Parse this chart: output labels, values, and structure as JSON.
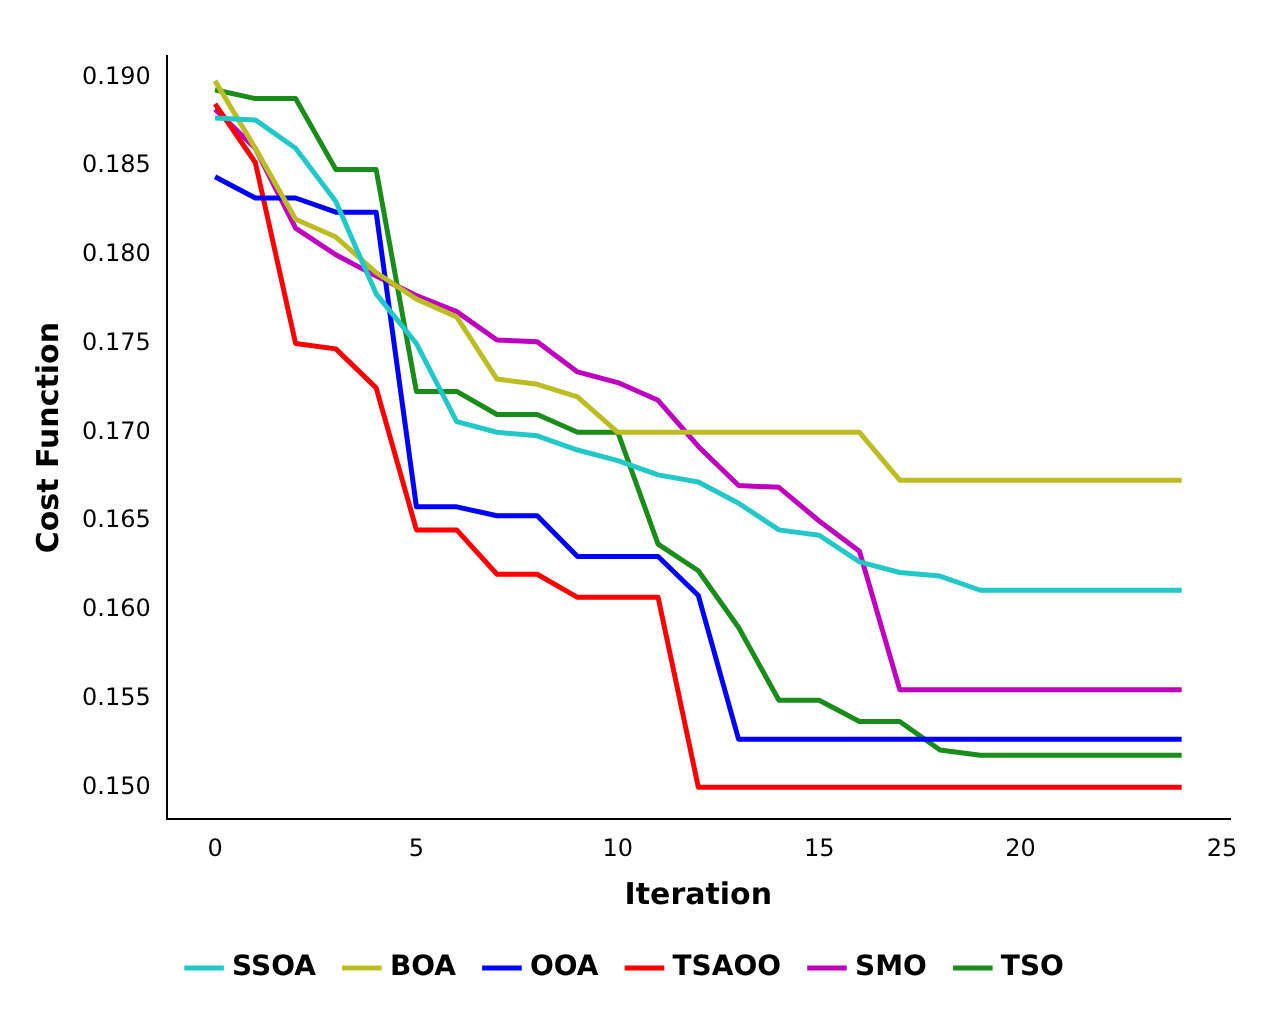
{
  "chart_data": {
    "type": "line",
    "xlabel": "Iteration",
    "ylabel": "Cost Function",
    "x": [
      0,
      1,
      2,
      3,
      4,
      5,
      6,
      7,
      8,
      9,
      10,
      11,
      12,
      13,
      14,
      15,
      16,
      17,
      18,
      19,
      20,
      21,
      22,
      23,
      24
    ],
    "series": [
      {
        "name": "SSOA",
        "color": "#22c7c7",
        "values": [
          0.1877,
          0.1876,
          0.186,
          0.183,
          0.1778,
          0.175,
          0.1706,
          0.17,
          0.1698,
          0.169,
          0.1684,
          0.1676,
          0.1672,
          0.166,
          0.1645,
          0.1642,
          0.1627,
          0.1621,
          0.1619,
          0.1611,
          0.1611,
          0.1611,
          0.1611,
          0.1611,
          0.1611
        ]
      },
      {
        "name": "BOA",
        "color": "#bcbd22",
        "values": [
          0.1898,
          0.186,
          0.182,
          0.181,
          0.179,
          0.1775,
          0.1765,
          0.173,
          0.1727,
          0.172,
          0.17,
          0.17,
          0.17,
          0.17,
          0.17,
          0.17,
          0.17,
          0.1673,
          0.1673,
          0.1673,
          0.1673,
          0.1673,
          0.1673,
          0.1673,
          0.1673
        ]
      },
      {
        "name": "OOA",
        "color": "#0000ff",
        "values": [
          0.1844,
          0.1832,
          0.1832,
          0.1824,
          0.1824,
          0.1658,
          0.1658,
          0.1653,
          0.1653,
          0.163,
          0.163,
          0.163,
          0.1608,
          0.1527,
          0.1527,
          0.1527,
          0.1527,
          0.1527,
          0.1527,
          0.1527,
          0.1527,
          0.1527,
          0.1527,
          0.1527,
          0.1527
        ]
      },
      {
        "name": "TSAOO",
        "color": "#ff0000",
        "values": [
          0.1885,
          0.1852,
          0.175,
          0.1747,
          0.1725,
          0.1645,
          0.1645,
          0.162,
          0.162,
          0.1607,
          0.1607,
          0.1607,
          0.15,
          0.15,
          0.15,
          0.15,
          0.15,
          0.15,
          0.15,
          0.15,
          0.15,
          0.15,
          0.15,
          0.15,
          0.15
        ]
      },
      {
        "name": "SMO",
        "color": "#bf00bf",
        "values": [
          0.1882,
          0.186,
          0.1815,
          0.18,
          0.1788,
          0.1777,
          0.1768,
          0.1752,
          0.1751,
          0.1734,
          0.1728,
          0.1718,
          0.1692,
          0.167,
          0.1669,
          0.165,
          0.1633,
          0.1555,
          0.1555,
          0.1555,
          0.1555,
          0.1555,
          0.1555,
          0.1555,
          0.1555
        ]
      },
      {
        "name": "TSO",
        "color": "#1a8c1a",
        "values": [
          0.1893,
          0.1888,
          0.1888,
          0.1848,
          0.1848,
          0.1723,
          0.1723,
          0.171,
          0.171,
          0.17,
          0.17,
          0.1637,
          0.1622,
          0.159,
          0.1549,
          0.1549,
          0.1537,
          0.1537,
          0.1521,
          0.1518,
          0.1518,
          0.1518,
          0.1518,
          0.1518,
          0.1518
        ]
      }
    ],
    "xlim": [
      -1.2,
      25.2
    ],
    "xticks": [
      0,
      5,
      10,
      15,
      20,
      25
    ],
    "ylim": [
      0.1482,
      0.1912
    ],
    "yticks": [
      {
        "value": 0.15,
        "label": "0.150"
      },
      {
        "value": 0.155,
        "label": "0.155"
      },
      {
        "value": 0.16,
        "label": "0.160"
      },
      {
        "value": 0.165,
        "label": "0.165"
      },
      {
        "value": 0.17,
        "label": "0.170"
      },
      {
        "value": 0.175,
        "label": "0.175"
      },
      {
        "value": 0.18,
        "label": "0.180"
      },
      {
        "value": 0.185,
        "label": "0.185"
      },
      {
        "value": 0.19,
        "label": "0.190"
      }
    ],
    "legend": "bottom",
    "grid": false,
    "marker": "none",
    "line_style": "solid"
  }
}
